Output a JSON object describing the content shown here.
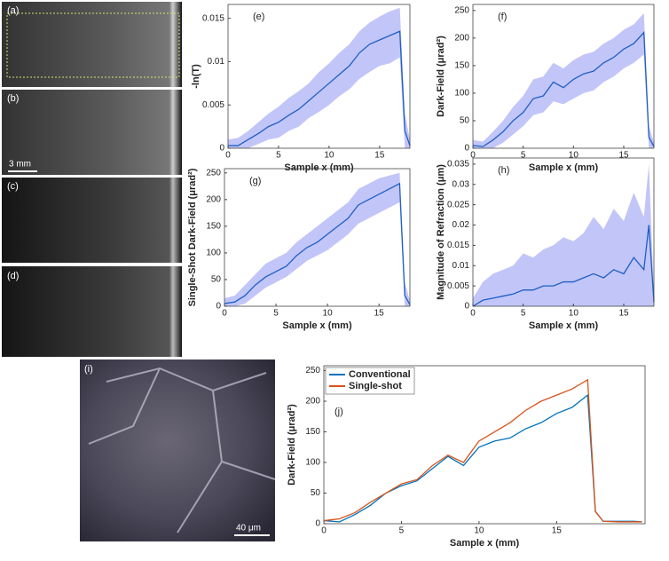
{
  "images": [
    {
      "label": "(a)"
    },
    {
      "label": "(b)",
      "scale_bar": "3 mm"
    },
    {
      "label": "(c)"
    },
    {
      "label": "(d)"
    },
    {
      "label": "(i)",
      "scale_bar": "40 μm"
    }
  ],
  "chart_data": [
    {
      "type": "line",
      "panel_label": "(e)",
      "xlabel": "Sample x (mm)",
      "ylabel": "-ln(T)",
      "x": [
        0,
        1,
        2,
        3,
        4,
        5,
        6,
        7,
        8,
        9,
        10,
        11,
        12,
        13,
        14,
        15,
        16,
        17,
        17.5,
        18
      ],
      "series": [
        {
          "color": "#1f5fc4",
          "values": [
            0.0003,
            0.0003,
            0.001,
            0.0017,
            0.0025,
            0.003,
            0.0038,
            0.0045,
            0.0055,
            0.0065,
            0.0075,
            0.0085,
            0.0095,
            0.011,
            0.012,
            0.0125,
            0.013,
            0.0135,
            0.002,
            0.0003
          ],
          "lower": [
            0,
            0,
            0,
            0.0005,
            0.001,
            0.0012,
            0.002,
            0.0025,
            0.0035,
            0.0042,
            0.005,
            0.006,
            0.0068,
            0.008,
            0.0088,
            0.0095,
            0.0098,
            0.0105,
            0,
            0
          ],
          "upper": [
            0.001,
            0.0012,
            0.002,
            0.003,
            0.004,
            0.0048,
            0.0058,
            0.0066,
            0.0075,
            0.0088,
            0.0098,
            0.011,
            0.012,
            0.0135,
            0.0145,
            0.0152,
            0.0158,
            0.0162,
            0.004,
            0.001
          ]
        }
      ],
      "xlim": [
        0,
        18
      ],
      "ylim": [
        0,
        0.0166
      ],
      "xticks": [
        0,
        5,
        10,
        15
      ],
      "yticks": [
        0,
        0.005,
        0.01,
        0.015
      ]
    },
    {
      "type": "line",
      "panel_label": "(f)",
      "xlabel": "Sample x (mm)",
      "ylabel": "Dark-Field (μrad²)",
      "x": [
        0,
        1,
        2,
        3,
        4,
        5,
        6,
        7,
        8,
        9,
        10,
        11,
        12,
        13,
        14,
        15,
        16,
        17,
        17.5,
        18
      ],
      "series": [
        {
          "color": "#1f5fc4",
          "values": [
            5,
            3,
            15,
            30,
            50,
            65,
            90,
            95,
            120,
            110,
            125,
            135,
            140,
            155,
            165,
            180,
            190,
            210,
            20,
            3
          ],
          "lower": [
            0,
            0,
            0,
            10,
            25,
            40,
            60,
            65,
            85,
            80,
            90,
            100,
            105,
            120,
            130,
            145,
            155,
            170,
            0,
            0
          ],
          "upper": [
            15,
            12,
            30,
            50,
            75,
            95,
            125,
            130,
            155,
            145,
            160,
            170,
            175,
            190,
            200,
            215,
            225,
            245,
            40,
            10
          ]
        }
      ],
      "xlim": [
        0,
        18
      ],
      "ylim": [
        0,
        261
      ],
      "xticks": [
        0,
        5,
        10,
        15
      ],
      "yticks": [
        0,
        50,
        100,
        150,
        200,
        250
      ]
    },
    {
      "type": "line",
      "panel_label": "(g)",
      "xlabel": "Sample x (mm)",
      "ylabel": "Single-Shot Dark-Field (μrad²)",
      "x": [
        0,
        1,
        2,
        3,
        4,
        5,
        6,
        7,
        8,
        9,
        10,
        11,
        12,
        13,
        14,
        15,
        16,
        17,
        17.5,
        18
      ],
      "series": [
        {
          "color": "#1f5fc4",
          "values": [
            5,
            8,
            20,
            40,
            55,
            65,
            75,
            95,
            110,
            120,
            135,
            150,
            165,
            190,
            200,
            210,
            220,
            230,
            20,
            3
          ],
          "lower": [
            0,
            0,
            5,
            20,
            35,
            45,
            55,
            70,
            85,
            95,
            105,
            120,
            135,
            155,
            165,
            175,
            185,
            195,
            0,
            0
          ],
          "upper": [
            15,
            20,
            40,
            60,
            80,
            90,
            100,
            120,
            135,
            150,
            165,
            180,
            195,
            220,
            230,
            240,
            245,
            250,
            45,
            10
          ]
        }
      ],
      "xlim": [
        0,
        18
      ],
      "ylim": [
        0,
        258
      ],
      "xticks": [
        0,
        5,
        10,
        15
      ],
      "yticks": [
        0,
        50,
        100,
        150,
        200,
        250
      ]
    },
    {
      "type": "line",
      "panel_label": "(h)",
      "xlabel": "Sample x (mm)",
      "ylabel": "Magnitude of Refraction (μm)",
      "x": [
        0,
        1,
        2,
        3,
        4,
        5,
        6,
        7,
        8,
        9,
        10,
        11,
        12,
        13,
        14,
        15,
        16,
        17,
        17.5,
        18
      ],
      "series": [
        {
          "color": "#1f5fc4",
          "values": [
            0,
            0.0015,
            0.002,
            0.0025,
            0.003,
            0.004,
            0.004,
            0.005,
            0.005,
            0.006,
            0.006,
            0.007,
            0.008,
            0.007,
            0.009,
            0.008,
            0.012,
            0.009,
            0.02,
            0.001
          ],
          "lower": [
            0,
            0,
            0,
            0,
            0,
            0,
            0,
            0,
            0,
            0,
            0,
            0,
            0,
            0,
            0,
            0,
            0,
            0,
            0,
            0
          ],
          "upper": [
            0.002,
            0.006,
            0.008,
            0.009,
            0.01,
            0.013,
            0.012,
            0.014,
            0.015,
            0.017,
            0.016,
            0.018,
            0.022,
            0.019,
            0.024,
            0.021,
            0.028,
            0.022,
            0.035,
            0.003
          ]
        }
      ],
      "xlim": [
        0,
        18
      ],
      "ylim": [
        0,
        0.0365
      ],
      "xticks": [
        0,
        5,
        10,
        15
      ],
      "yticks": [
        0,
        0.005,
        0.01,
        0.015,
        0.02,
        0.025,
        0.03,
        0.035
      ]
    },
    {
      "type": "line",
      "panel_label": "(j)",
      "xlabel": "Sample x (mm)",
      "ylabel": "Dark-Field (μrad²)",
      "x": [
        0,
        1,
        2,
        3,
        4,
        5,
        6,
        7,
        8,
        9,
        10,
        11,
        12,
        13,
        14,
        15,
        16,
        17,
        17.5,
        18,
        19,
        20,
        20.5
      ],
      "series": [
        {
          "name": "Conventional",
          "color": "#0072bd",
          "values": [
            5,
            3,
            15,
            30,
            50,
            62,
            70,
            90,
            110,
            95,
            125,
            135,
            140,
            155,
            165,
            180,
            190,
            210,
            20,
            4,
            4,
            4,
            3
          ]
        },
        {
          "name": "Single-shot",
          "color": "#d95319",
          "values": [
            5,
            8,
            18,
            35,
            50,
            65,
            72,
            95,
            112,
            100,
            135,
            150,
            165,
            185,
            200,
            210,
            220,
            235,
            20,
            4,
            3,
            3,
            3
          ]
        }
      ],
      "xlim": [
        0,
        20.7
      ],
      "ylim": [
        0,
        258
      ],
      "xticks": [
        0,
        5,
        10,
        15
      ],
      "yticks": [
        0,
        50,
        100,
        150,
        200,
        250
      ],
      "legend": "upper left"
    }
  ]
}
